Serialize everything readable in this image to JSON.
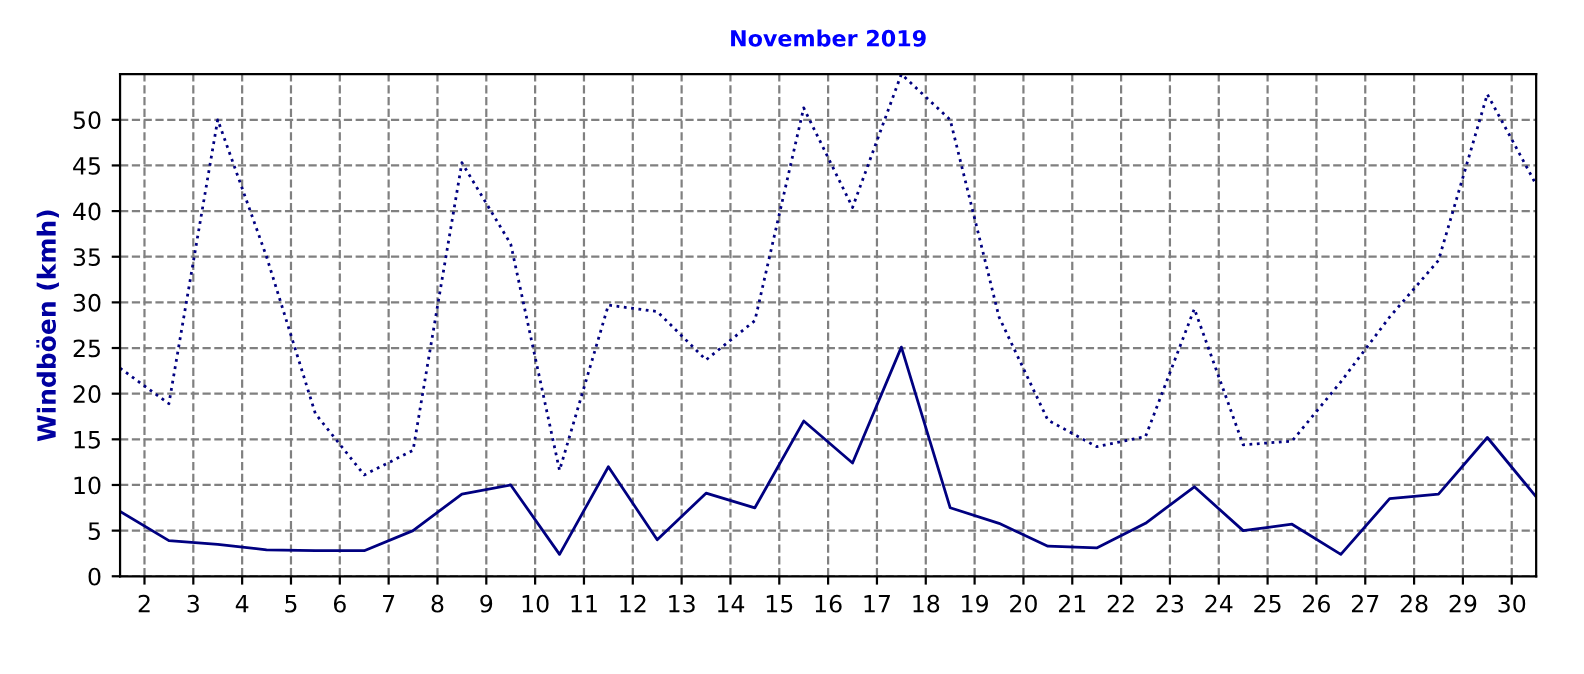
{
  "chart_data": {
    "type": "line",
    "title": "November 2019",
    "ylabel": "Windböen (kmh)",
    "x": [
      1.5,
      2.5,
      3.5,
      4.5,
      5.5,
      6.5,
      7.5,
      8.5,
      9.5,
      10.5,
      11.5,
      12.5,
      13.5,
      14.5,
      15.5,
      16.5,
      17.5,
      18.5,
      19.5,
      20.5,
      21.5,
      22.5,
      23.5,
      24.5,
      25.5,
      26.5,
      27.5,
      28.5,
      29.5,
      30.5
    ],
    "series": [
      {
        "color": "#000080",
        "line_style": "dotted",
        "values": [
          22.8,
          18.9,
          50,
          35,
          17.8,
          11.1,
          13.8,
          45.3,
          36.4,
          11.6,
          29.7,
          29,
          23.7,
          28,
          51.3,
          40.4,
          55,
          50,
          28.4,
          17.1,
          14.2,
          15.3,
          29.3,
          14.4,
          14.8,
          21.3,
          28.4,
          34.6,
          52.8,
          42.9
        ]
      },
      {
        "color": "#000080",
        "line_style": "solid",
        "values": [
          7.1,
          3.9,
          3.5,
          2.9,
          2.8,
          2.8,
          5,
          9,
          10,
          2.4,
          12,
          4,
          9.1,
          7.5,
          17,
          12.4,
          25.1,
          7.5,
          5.8,
          3.3,
          3.1,
          5.8,
          9.8,
          5,
          5.7,
          2.4,
          8.5,
          9,
          15.2,
          8.7
        ]
      }
    ],
    "xlim": [
      1.5,
      30.5
    ],
    "xticks": [
      2,
      3,
      4,
      5,
      6,
      7,
      8,
      9,
      10,
      11,
      12,
      13,
      14,
      15,
      16,
      17,
      18,
      19,
      20,
      21,
      22,
      23,
      24,
      25,
      26,
      27,
      28,
      29,
      30
    ],
    "ylim": [
      0,
      55
    ],
    "yticks": [
      0,
      5,
      10,
      15,
      20,
      25,
      30,
      35,
      40,
      45,
      50
    ],
    "grid": true,
    "legend": false
  }
}
